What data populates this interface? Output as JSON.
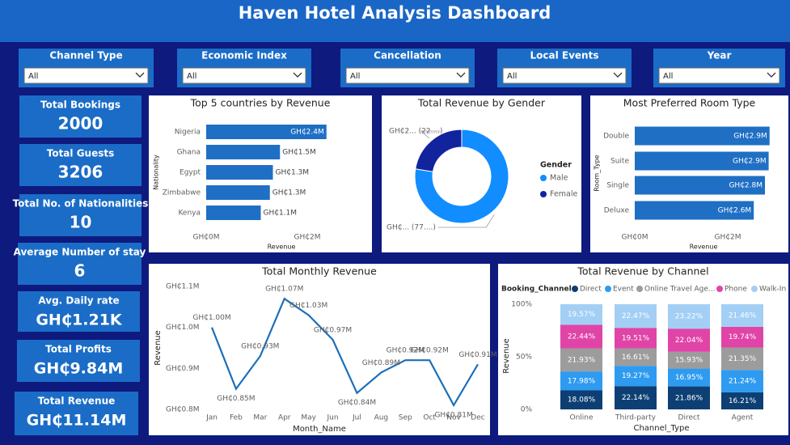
{
  "title": "Haven Hotel Analysis Dashboard",
  "filters": [
    {
      "label": "Channel Type",
      "value": "All"
    },
    {
      "label": "Economic Index",
      "value": "All"
    },
    {
      "label": "Cancellation",
      "value": "All"
    },
    {
      "label": "Local Events",
      "value": "All"
    },
    {
      "label": "Year",
      "value": "All"
    }
  ],
  "kpis": [
    {
      "label": "Total Bookings",
      "value": "2000"
    },
    {
      "label": "Total Guests",
      "value": "3206"
    },
    {
      "label": "Total No. of Nationalities",
      "value": "10"
    },
    {
      "label": "Average Number of stay",
      "value": "6"
    },
    {
      "label": "Avg. Daily rate",
      "value": "GH₵1.21K"
    },
    {
      "label": "Total Profits",
      "value": "GH₵9.84M"
    },
    {
      "label": "Total Revenue",
      "value": "GH₵11.14M"
    }
  ],
  "chart_data": [
    {
      "type": "bar",
      "orientation": "horizontal",
      "title": "Top 5 countries by Revenue",
      "x_label": "Revenue",
      "y_label": "Nationality",
      "categories": [
        "Nigeria",
        "Ghana",
        "Egypt",
        "Zimbabwe",
        "Kenya"
      ],
      "values": [
        2380000,
        1460000,
        1320000,
        1260000,
        1080000
      ],
      "value_labels": [
        "GH₵2.4M",
        "GH₵1.5M",
        "GH₵1.3M",
        "GH₵1.3M",
        "GH₵1.1M"
      ],
      "color": "#1f6fc4",
      "xlim": [
        0,
        3000000
      ],
      "xticks": [
        {
          "value": 0,
          "label": "GH₵0M"
        },
        {
          "value": 2000000,
          "label": "GH₵2M"
        }
      ]
    },
    {
      "type": "donut",
      "title": "Total Revenue by Gender",
      "legend_title": "Gender",
      "legend": "right",
      "categories": [
        "Male",
        "Female"
      ],
      "values": [
        8640000,
        2500000
      ],
      "value_labels": [
        "GH₵... (77....)",
        "GH₵2... (22....)"
      ],
      "colors": [
        "#118dff",
        "#12239e"
      ]
    },
    {
      "type": "bar",
      "orientation": "horizontal",
      "title": "Most Preferred Room Type",
      "x_label": "Revenue",
      "y_label": "Room_Type",
      "categories": [
        "Double",
        "Suite",
        "Single",
        "Deluxe"
      ],
      "values": [
        2900000,
        2880000,
        2800000,
        2560000
      ],
      "value_labels": [
        "GH₵2.9M",
        "GH₵2.9M",
        "GH₵2.8M",
        "GH₵2.6M"
      ],
      "color": "#1f6fc4",
      "xlim": [
        0,
        3000000
      ],
      "xticks": [
        {
          "value": 0,
          "label": "GH₵0M"
        },
        {
          "value": 2000000,
          "label": "GH₵2M"
        }
      ]
    },
    {
      "type": "line",
      "title": "Total Monthly Revenue",
      "x_label": "Month_Name",
      "y_label": "Revenue",
      "categories": [
        "Jan",
        "Feb",
        "Mar",
        "Apr",
        "May",
        "Jun",
        "Jul",
        "Aug",
        "Sep",
        "Oct",
        "Nov",
        "Dec"
      ],
      "values": [
        1000000,
        850000,
        930000,
        1070000,
        1030000,
        970000,
        840000,
        890000,
        920000,
        920000,
        810000,
        910000
      ],
      "value_labels": [
        "GH₵1.00M",
        "GH₵0.85M",
        "GH₵0.93M",
        "GH₵1.07M",
        "GH₵1.03M",
        "GH₵0.97M",
        "GH₵0.84M",
        "GH₵0.89M",
        "GH₵0.92M",
        "GH₵0.92M",
        "GH₵0.81M",
        "GH₵0.91M"
      ],
      "color": "#1d6fb8",
      "ylim": [
        800000,
        1100000
      ],
      "yticks": [
        {
          "value": 800000,
          "label": "GH₵0.8M"
        },
        {
          "value": 900000,
          "label": "GH₵0.9M"
        },
        {
          "value": 1000000,
          "label": "GH₵1.0M"
        },
        {
          "value": 1100000,
          "label": "GH₵1.1M"
        }
      ]
    },
    {
      "type": "bar",
      "orientation": "vertical",
      "stacked": true,
      "title": "Total Revenue by Channel",
      "x_label": "Channel_Type",
      "y_label": "Revenue",
      "legend_title": "Booking_Channel",
      "legend": "top",
      "categories": [
        "Online",
        "Third-party",
        "Direct",
        "Agent"
      ],
      "series": [
        {
          "name": "Direct",
          "color": "#0d3f74",
          "values": [
            18.08,
            22.14,
            21.86,
            16.21
          ],
          "value_labels": [
            "18.08%",
            "22.14%",
            "21.86%",
            "16.21%"
          ]
        },
        {
          "name": "Event",
          "color": "#2e9bf0",
          "values": [
            17.98,
            19.27,
            16.95,
            21.24
          ],
          "value_labels": [
            "17.98%",
            "19.27%",
            "16.95%",
            "21.24%"
          ]
        },
        {
          "name": "Online Travel Age...",
          "color": "#9c9c9c",
          "values": [
            21.93,
            16.61,
            15.93,
            21.35
          ],
          "value_labels": [
            "21.93%",
            "16.61%",
            "15.93%",
            "21.35%"
          ]
        },
        {
          "name": "Phone",
          "color": "#e044a7",
          "values": [
            22.44,
            19.51,
            22.04,
            19.74
          ],
          "value_labels": [
            "22.44%",
            "19.51%",
            "22.04%",
            "19.74%"
          ]
        },
        {
          "name": "Walk-In",
          "color": "#a3cff5",
          "values": [
            19.57,
            22.47,
            23.22,
            21.46
          ],
          "value_labels": [
            "19.57%",
            "22.47%",
            "23.22%",
            "21.46%"
          ]
        }
      ],
      "ylim": [
        0,
        100
      ],
      "yticks": [
        {
          "value": 0,
          "label": "0%"
        },
        {
          "value": 50,
          "label": "50%"
        },
        {
          "value": 100,
          "label": "100%"
        }
      ]
    }
  ]
}
